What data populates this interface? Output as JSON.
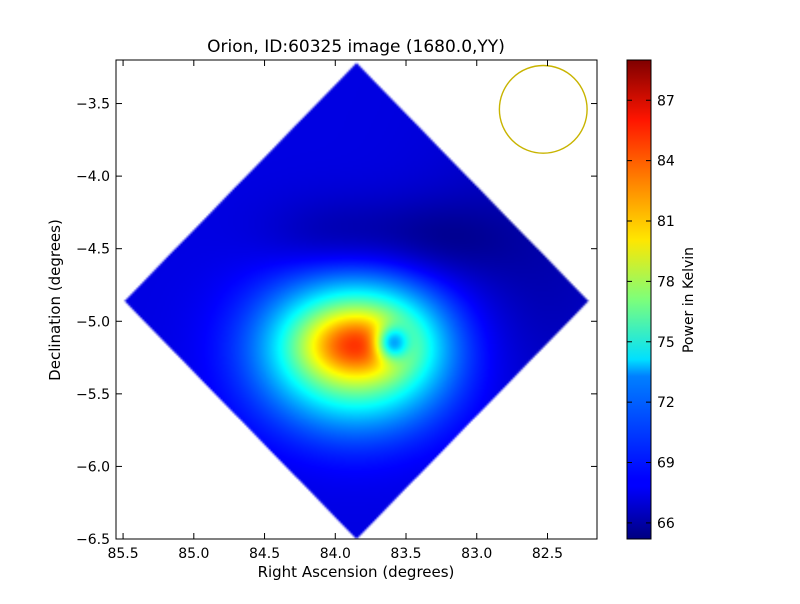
{
  "chart_data": {
    "type": "heatmap",
    "title": "Orion, ID:60325 image (1680.0,YY)",
    "xlabel": "Right Ascension (degrees)",
    "ylabel": "Declination (degrees)",
    "xlim": [
      85.55,
      82.15
    ],
    "ylim": [
      -6.5,
      -3.2
    ],
    "x_ticks": [
      85.5,
      85.0,
      84.5,
      84.0,
      83.5,
      83.0,
      82.5
    ],
    "x_tick_labels": [
      "85.5",
      "85.0",
      "84.5",
      "84.0",
      "83.5",
      "83.0",
      "82.5"
    ],
    "y_ticks": [
      -3.5,
      -4.0,
      -4.5,
      -5.0,
      -5.5,
      -6.0,
      -6.5
    ],
    "y_tick_labels": [
      "−3.5",
      "−4.0",
      "−4.5",
      "−5.0",
      "−5.5",
      "−6.0",
      "−6.5"
    ],
    "grid": false,
    "colormap": "jet",
    "colorbar": {
      "label": "Power in Kelvin",
      "vmin": 65.2,
      "vmax": 89.0,
      "ticks": [
        66,
        69,
        72,
        75,
        78,
        81,
        84,
        87
      ],
      "tick_labels": [
        "66",
        "69",
        "72",
        "75",
        "78",
        "81",
        "84",
        "87"
      ]
    },
    "map": {
      "footprint_diamond": {
        "center_ra": 83.85,
        "center_dec": -4.86,
        "half_width_ra": 1.65,
        "half_height_dec": 1.65
      },
      "background_level": 67.5,
      "features": [
        {
          "ra": 83.85,
          "dec": -5.2,
          "sigma_ra": 0.45,
          "sigma_dec": 0.35,
          "peak": 12.0
        },
        {
          "ra": 83.85,
          "dec": -5.15,
          "sigma_ra": 0.28,
          "sigma_dec": 0.17,
          "peak": 5.5
        },
        {
          "ra": 83.6,
          "dec": -5.15,
          "sigma_ra": 0.08,
          "sigma_dec": 0.08,
          "peak": -9.0
        },
        {
          "ra": 84.0,
          "dec": -4.45,
          "sigma_ra": 0.35,
          "sigma_dec": 0.2,
          "peak": -1.6
        },
        {
          "ra": 83.3,
          "dec": -4.45,
          "sigma_ra": 0.35,
          "sigma_dec": 0.2,
          "peak": -1.6
        },
        {
          "ra": 82.6,
          "dec": -4.6,
          "sigma_ra": 0.5,
          "sigma_dec": 0.7,
          "peak": -1.2
        }
      ]
    },
    "beam_circle": {
      "ra": 82.53,
      "dec": -3.54,
      "radius_deg": 0.31,
      "color": "#c8b400"
    }
  }
}
